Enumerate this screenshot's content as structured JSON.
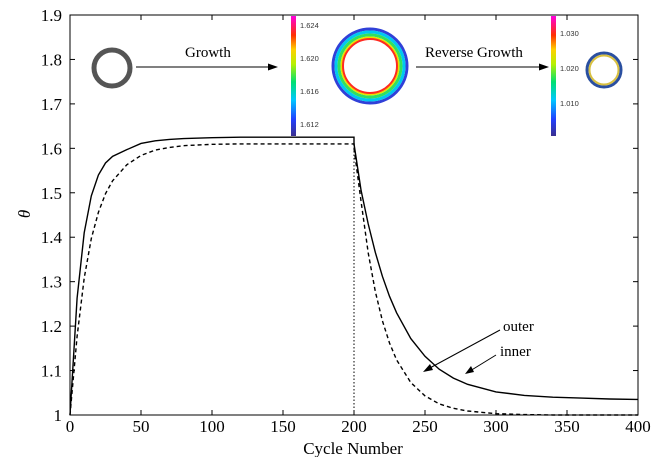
{
  "chart_data": {
    "type": "line",
    "xlabel": "Cycle Number",
    "ylabel": "θ",
    "xlim": [
      0,
      400
    ],
    "ylim": [
      1,
      1.9
    ],
    "x_ticks": [
      "0",
      "50",
      "100",
      "150",
      "200",
      "250",
      "300",
      "350",
      "400"
    ],
    "y_ticks": [
      "1",
      "1.1",
      "1.2",
      "1.3",
      "1.4",
      "1.5",
      "1.6",
      "1.7",
      "1.8",
      "1.9"
    ],
    "grid": false,
    "reference_line_x": 200,
    "series": [
      {
        "name": "outer",
        "style": "solid",
        "color": "#000000",
        "x": [
          0,
          5,
          10,
          15,
          20,
          25,
          30,
          40,
          50,
          60,
          70,
          80,
          100,
          120,
          150,
          175,
          200,
          200,
          205,
          210,
          215,
          220,
          225,
          230,
          240,
          250,
          260,
          270,
          280,
          300,
          320,
          340,
          360,
          380,
          400
        ],
        "y": [
          1.0,
          1.263,
          1.41,
          1.493,
          1.54,
          1.567,
          1.582,
          1.597,
          1.611,
          1.617,
          1.62,
          1.622,
          1.624,
          1.625,
          1.625,
          1.625,
          1.625,
          1.61,
          1.505,
          1.43,
          1.366,
          1.312,
          1.267,
          1.23,
          1.172,
          1.132,
          1.103,
          1.083,
          1.069,
          1.052,
          1.044,
          1.04,
          1.038,
          1.036,
          1.035
        ]
      },
      {
        "name": "inner",
        "style": "dashed",
        "color": "#000000",
        "x": [
          0,
          5,
          10,
          15,
          20,
          25,
          30,
          40,
          50,
          60,
          70,
          80,
          100,
          120,
          150,
          175,
          200,
          200,
          205,
          210,
          215,
          220,
          225,
          230,
          240,
          250,
          260,
          270,
          280,
          300,
          320,
          340,
          360,
          380,
          400
        ],
        "y": [
          1.0,
          1.177,
          1.308,
          1.397,
          1.456,
          1.498,
          1.527,
          1.563,
          1.584,
          1.596,
          1.602,
          1.606,
          1.609,
          1.61,
          1.61,
          1.61,
          1.61,
          1.6,
          1.48,
          1.365,
          1.278,
          1.212,
          1.162,
          1.124,
          1.073,
          1.043,
          1.025,
          1.015,
          1.009,
          1.003,
          1.001,
          1.0,
          1.0,
          1.0,
          1.0
        ]
      }
    ],
    "annotations": {
      "growth": "Growth",
      "reverse_growth": "Reverse Growth",
      "outer": "outer",
      "inner": "inner"
    },
    "colorbars": [
      {
        "labels": [
          "1.624",
          "1.620",
          "1.616",
          "1.612"
        ]
      },
      {
        "labels": [
          "1.030",
          "1.020",
          "1.010"
        ]
      }
    ]
  }
}
